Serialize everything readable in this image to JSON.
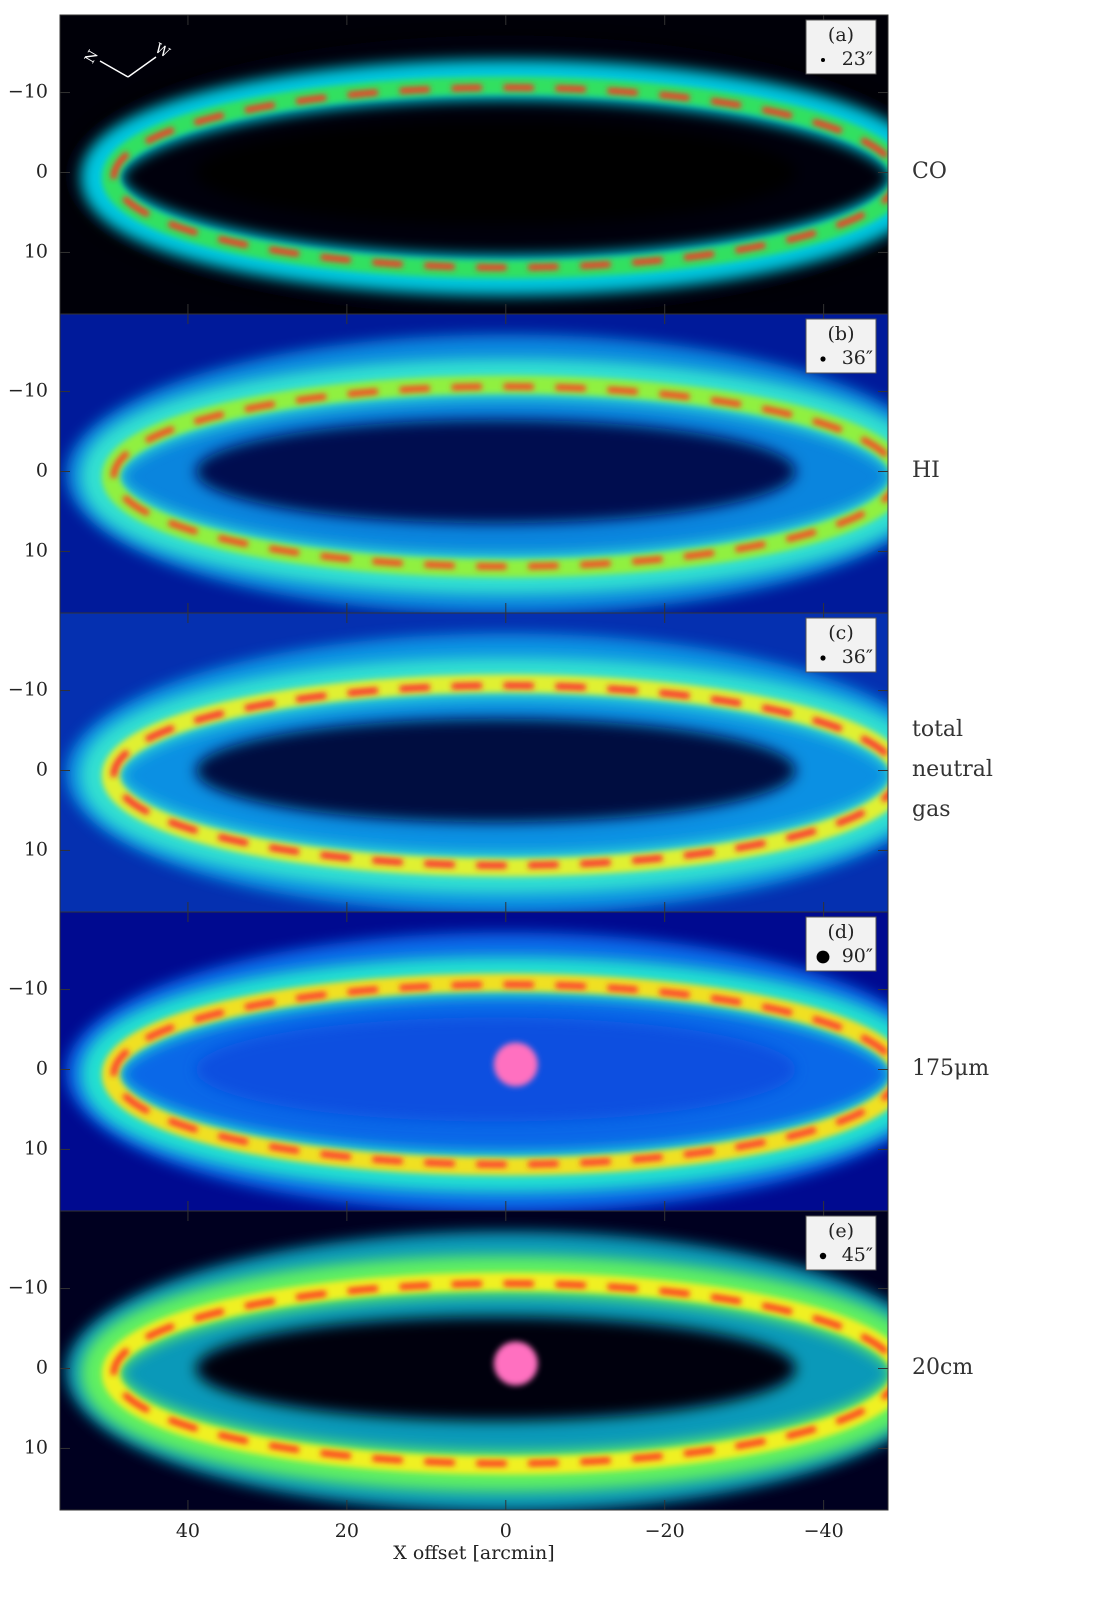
{
  "chart_data": [
    {
      "type": "image",
      "panel_label": "(a)",
      "beam": "23″",
      "label": "CO",
      "compass": [
        "N",
        "W"
      ],
      "xlim": [
        56.1,
        -48.1
      ],
      "ylim": [
        -19.7,
        17.7
      ],
      "xticks": [
        40,
        20,
        0,
        {
          "value": -20,
          "label": "−20"
        },
        {
          "value": -40,
          "label": "−40"
        }
      ],
      "yticks": [
        {
          "value": -10,
          "label": "−10"
        },
        0,
        10
      ]
    },
    {
      "type": "image",
      "panel_label": "(b)",
      "beam": "36″",
      "label": "HI",
      "xlim": [
        56.1,
        -48.1
      ],
      "ylim": [
        -19.7,
        17.7
      ],
      "xticks": [
        40,
        20,
        0,
        {
          "value": -20,
          "label": "−20"
        },
        {
          "value": -40,
          "label": "−40"
        }
      ],
      "yticks": [
        {
          "value": -10,
          "label": "−10"
        },
        0,
        10
      ]
    },
    {
      "type": "image",
      "panel_label": "(c)",
      "beam": "36″",
      "label": "total neutral gas",
      "xlim": [
        56.1,
        -48.1
      ],
      "ylim": [
        -19.7,
        17.7
      ],
      "xticks": [
        40,
        20,
        0,
        {
          "value": -20,
          "label": "−20"
        },
        {
          "value": -40,
          "label": "−40"
        }
      ],
      "yticks": [
        {
          "value": -10,
          "label": "−10"
        },
        0,
        10
      ]
    },
    {
      "type": "image",
      "panel_label": "(d)",
      "beam": "90″",
      "label": "175μm",
      "xlim": [
        56.1,
        -48.1
      ],
      "ylim": [
        -19.7,
        17.7
      ],
      "xticks": [
        40,
        20,
        0,
        {
          "value": -20,
          "label": "−20"
        },
        {
          "value": -40,
          "label": "−40"
        }
      ],
      "yticks": [
        {
          "value": -10,
          "label": "−10"
        },
        0,
        10
      ]
    },
    {
      "type": "image",
      "panel_label": "(e)",
      "beam": "45″",
      "label": "20cm",
      "xlabel": "X offset [arcmin]",
      "xlim": [
        56.1,
        -48.1
      ],
      "ylim": [
        -19.7,
        17.7
      ],
      "xticks": [
        40,
        20,
        0,
        {
          "value": -20,
          "label": "−20"
        },
        {
          "value": -40,
          "label": "−40"
        }
      ],
      "yticks": [
        {
          "value": -10,
          "label": "−10"
        },
        0,
        10
      ]
    }
  ]
}
